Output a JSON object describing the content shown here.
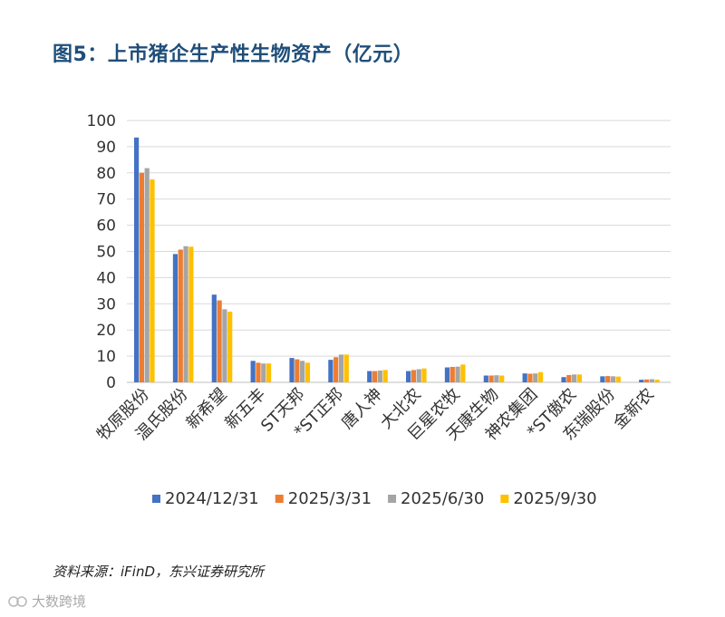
{
  "title": "图5：上市猪企生产性生物资产（亿元）",
  "source": "资料来源：iFinD，东兴证券研究所",
  "watermark": "大数跨境",
  "colors": {
    "title": "#1f4e79",
    "series": [
      "#4472c4",
      "#ed7d31",
      "#a5a5a5",
      "#ffc000"
    ],
    "grid": "#d9d9d9",
    "axis_text": "#333333"
  },
  "chart_data": {
    "type": "bar",
    "title": "图5：上市猪企生产性生物资产（亿元）",
    "xlabel": "",
    "ylabel": "",
    "ylim": [
      0,
      100
    ],
    "yticks": [
      0,
      10,
      20,
      30,
      40,
      50,
      60,
      70,
      80,
      90,
      100
    ],
    "grid": true,
    "legend": "bottom",
    "categories": [
      "牧原股份",
      "温氏股份",
      "新希望",
      "新五丰",
      "ST天邦",
      "*ST正邦",
      "唐人神",
      "大北农",
      "巨星农牧",
      "天康生物",
      "神农集团",
      "*ST傲农",
      "东瑞股份",
      "金新农"
    ],
    "series": [
      {
        "name": "2024/12/31",
        "values": [
          93.5,
          49.0,
          33.5,
          8.2,
          9.3,
          8.6,
          4.3,
          4.3,
          5.7,
          2.6,
          3.4,
          2.0,
          2.3,
          1.0
        ]
      },
      {
        "name": "2025/3/31",
        "values": [
          80.0,
          50.7,
          31.3,
          7.5,
          8.8,
          9.6,
          4.3,
          4.7,
          5.9,
          2.6,
          3.3,
          2.8,
          2.4,
          1.1
        ]
      },
      {
        "name": "2025/6/30",
        "values": [
          81.8,
          52.0,
          27.9,
          7.2,
          8.2,
          10.6,
          4.5,
          5.0,
          6.0,
          2.7,
          3.4,
          3.0,
          2.3,
          1.2
        ]
      },
      {
        "name": "2025/9/30",
        "values": [
          77.5,
          51.8,
          27.0,
          7.2,
          7.5,
          10.6,
          4.7,
          5.3,
          6.8,
          2.6,
          3.9,
          3.0,
          2.2,
          1.0
        ]
      }
    ]
  }
}
